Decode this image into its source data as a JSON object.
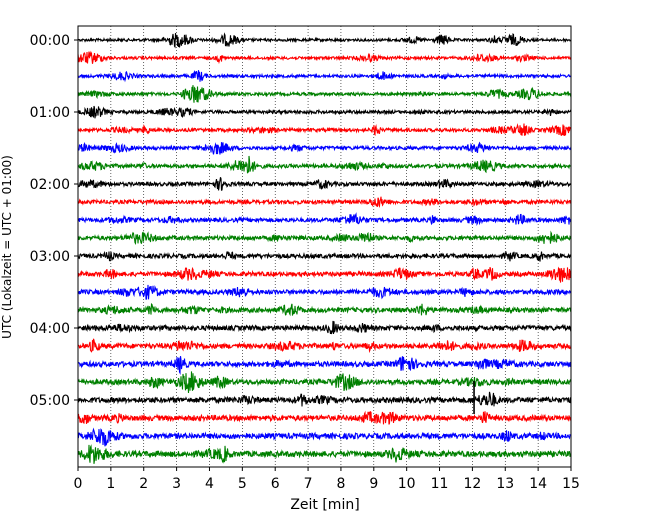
{
  "chart_data": {
    "type": "line",
    "xlabel": "Zeit  [min]",
    "ylabel": "UTC (Lokalzeit = UTC + 01:00)",
    "xlim": [
      0,
      15
    ],
    "x_ticks": [
      "0",
      "1",
      "2",
      "3",
      "4",
      "5",
      "6",
      "7",
      "8",
      "9",
      "10",
      "11",
      "12",
      "13",
      "14",
      "15"
    ],
    "y_ticks": [
      "00:00",
      "01:00",
      "02:00",
      "03:00",
      "04:00",
      "05:00"
    ],
    "grid": "vertical dotted",
    "trace_colors": [
      "#000000",
      "#ff0000",
      "#0000ff",
      "#008000"
    ],
    "trace_count": 24,
    "trace_interval_minutes": 15
  }
}
